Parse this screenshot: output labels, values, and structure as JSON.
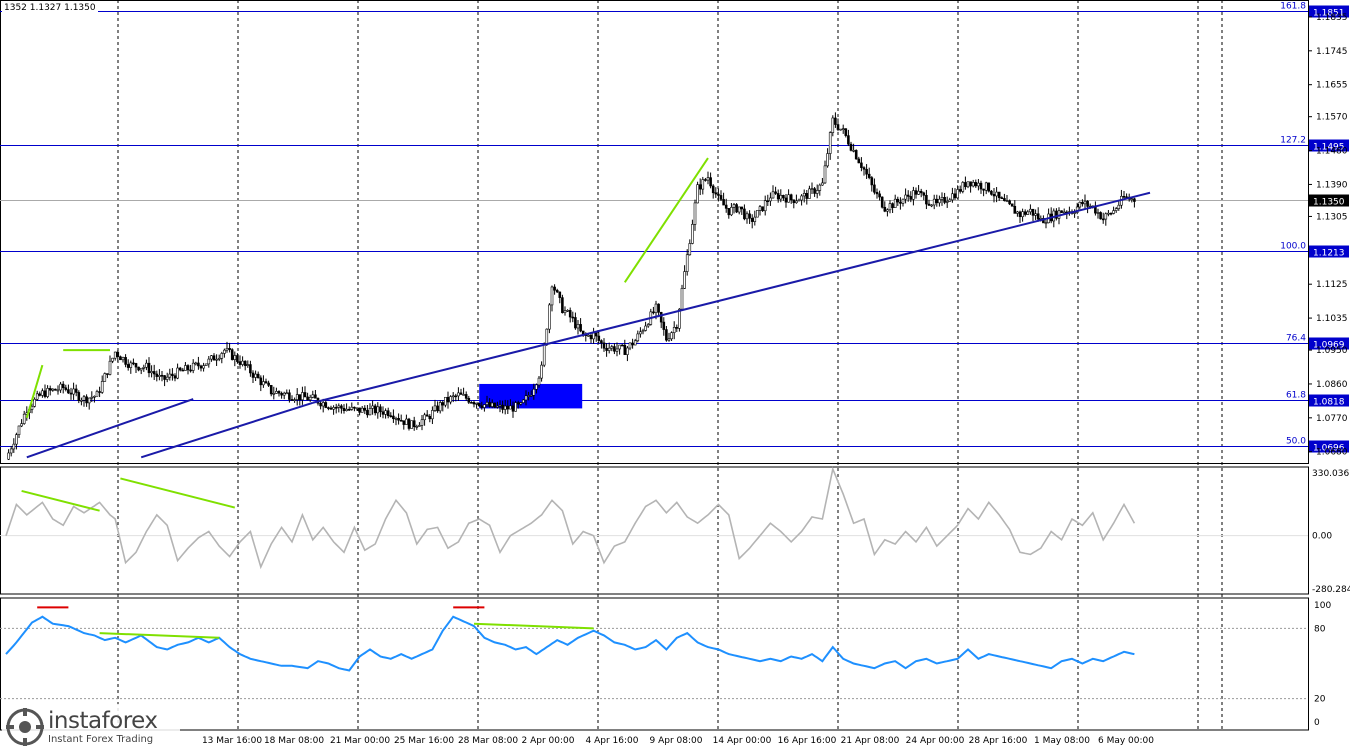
{
  "header": {
    "ohlc_text": "1352 1.1327 1.1350"
  },
  "watermark": {
    "brand": "instaforex",
    "tagline": "Instant Forex Trading"
  },
  "colors": {
    "fib_line": "#0000cc",
    "trend_line": "#1a1aa8",
    "divergence_green": "#7fe000",
    "divergence_red": "#dd0000",
    "price_candle": "#000000",
    "cci_line": "#b4b4b4",
    "rsi_line": "#1e90ff",
    "grid": "#000000",
    "label_box": "#0000cc",
    "rectangle": "#0000ff"
  },
  "chart_data": [
    {
      "type": "candlestick",
      "pane": "price",
      "ylim": [
        1.065,
        1.188
      ],
      "axis_ticks": [
        "1.1835",
        "1.1745",
        "1.1655",
        "1.1570",
        "1.1480",
        "1.1390",
        "1.1305",
        "1.1125",
        "1.1035",
        "1.0950",
        "1.0860",
        "1.0770",
        "1.0680"
      ],
      "fib_levels": [
        {
          "ratio": "161.8",
          "price": 1.1851,
          "price_label": "1.1851"
        },
        {
          "ratio": "127.2",
          "price": 1.1495,
          "price_label": "1.1495"
        },
        {
          "ratio": "100.0",
          "price": 1.1213,
          "price_label": "1.1213"
        },
        {
          "ratio": "76.4",
          "price": 1.0969,
          "price_label": "1.0969"
        },
        {
          "ratio": "61.8",
          "price": 1.0818,
          "price_label": "1.0818"
        },
        {
          "ratio": "50.0",
          "price": 1.0696,
          "price_label": "1.0696"
        }
      ],
      "current_price": {
        "price": 1.135,
        "label": "1.1350"
      },
      "x_labels": [
        "13 Mar 16:00",
        "18 Mar 08:00",
        "21 Mar 00:00",
        "25 Mar 16:00",
        "28 Mar 08:00",
        "2 Apr 00:00",
        "4 Apr 16:00",
        "9 Apr 08:00",
        "14 Apr 00:00",
        "16 Apr 16:00",
        "21 Apr 08:00",
        "24 Apr 00:00",
        "28 Apr 16:00",
        "1 May 08:00",
        "6 May 00:00"
      ],
      "close_path": [
        [
          0,
          1.066
        ],
        [
          8,
          1.0795
        ],
        [
          14,
          1.0835
        ],
        [
          22,
          1.085
        ],
        [
          30,
          1.082
        ],
        [
          35,
          1.083
        ],
        [
          42,
          1.0945
        ],
        [
          48,
          1.091
        ],
        [
          54,
          1.0905
        ],
        [
          60,
          1.087
        ],
        [
          66,
          1.089
        ],
        [
          72,
          1.0905
        ],
        [
          78,
          1.092
        ],
        [
          84,
          1.095
        ],
        [
          90,
          1.092
        ],
        [
          96,
          1.088
        ],
        [
          102,
          1.084
        ],
        [
          110,
          1.083
        ],
        [
          118,
          1.082
        ],
        [
          126,
          1.08
        ],
        [
          134,
          1.079
        ],
        [
          142,
          1.079
        ],
        [
          148,
          1.0785
        ],
        [
          152,
          1.0765
        ],
        [
          156,
          1.075
        ],
        [
          162,
          1.077
        ],
        [
          168,
          1.081
        ],
        [
          174,
          1.083
        ],
        [
          180,
          1.0815
        ],
        [
          186,
          1.08
        ],
        [
          192,
          1.0795
        ],
        [
          198,
          1.08
        ],
        [
          202,
          1.084
        ],
        [
          206,
          1.09
        ],
        [
          210,
          1.113
        ],
        [
          214,
          1.106
        ],
        [
          218,
          1.103
        ],
        [
          222,
          1.0985
        ],
        [
          226,
          1.099
        ],
        [
          230,
          1.096
        ],
        [
          234,
          1.0955
        ],
        [
          238,
          1.095
        ],
        [
          242,
          1.0975
        ],
        [
          246,
          1.102
        ],
        [
          250,
          1.106
        ],
        [
          254,
          1.098
        ],
        [
          258,
          1.102
        ],
        [
          262,
          1.12
        ],
        [
          266,
          1.138
        ],
        [
          270,
          1.141
        ],
        [
          274,
          1.135
        ],
        [
          278,
          1.132
        ],
        [
          282,
          1.133
        ],
        [
          286,
          1.129
        ],
        [
          290,
          1.132
        ],
        [
          294,
          1.136
        ],
        [
          298,
          1.136
        ],
        [
          302,
          1.135
        ],
        [
          306,
          1.1355
        ],
        [
          310,
          1.137
        ],
        [
          314,
          1.139
        ],
        [
          318,
          1.156
        ],
        [
          322,
          1.153
        ],
        [
          326,
          1.148
        ],
        [
          330,
          1.143
        ],
        [
          334,
          1.137
        ],
        [
          338,
          1.133
        ],
        [
          342,
          1.134
        ],
        [
          346,
          1.1355
        ],
        [
          350,
          1.137
        ],
        [
          354,
          1.135
        ],
        [
          358,
          1.1335
        ],
        [
          362,
          1.1355
        ],
        [
          366,
          1.137
        ],
        [
          370,
          1.14
        ],
        [
          374,
          1.139
        ],
        [
          378,
          1.138
        ],
        [
          382,
          1.135
        ],
        [
          386,
          1.133
        ],
        [
          390,
          1.131
        ],
        [
          394,
          1.132
        ],
        [
          398,
          1.1295
        ],
        [
          402,
          1.1305
        ],
        [
          406,
          1.132
        ],
        [
          410,
          1.132
        ],
        [
          414,
          1.134
        ],
        [
          418,
          1.133
        ],
        [
          422,
          1.13
        ],
        [
          426,
          1.132
        ],
        [
          430,
          1.1355
        ],
        [
          434,
          1.135
        ]
      ],
      "trend_lines": [
        {
          "from": [
            8,
            1.0665
          ],
          "to": [
            72,
            1.082
          ]
        },
        {
          "from": [
            52,
            1.0665
          ],
          "to": [
            118,
            1.081
          ]
        },
        {
          "from": [
            118,
            1.081
          ],
          "to": [
            440,
            1.1368
          ]
        }
      ],
      "divergence_lines": [
        {
          "from": [
            8,
            1.077
          ],
          "to": [
            14,
            1.091
          ]
        },
        {
          "from": [
            22,
            1.095
          ],
          "to": [
            40,
            1.095
          ]
        },
        {
          "from": [
            238,
            1.113
          ],
          "to": [
            270,
            1.146
          ]
        }
      ],
      "rectangle": {
        "x0": 26,
        "x1": 31,
        "y0": 1.0795,
        "y1": 1.086
      }
    },
    {
      "type": "line",
      "pane": "cci",
      "ylim": [
        -280.284,
        330.0361
      ],
      "axis_ticks": [
        "330.0361",
        "0.00",
        "-280.2840"
      ],
      "values": [
        [
          0,
          0
        ],
        [
          4,
          150
        ],
        [
          8,
          100
        ],
        [
          14,
          160
        ],
        [
          18,
          80
        ],
        [
          22,
          50
        ],
        [
          26,
          140
        ],
        [
          30,
          110
        ],
        [
          36,
          160
        ],
        [
          40,
          100
        ],
        [
          42,
          80
        ],
        [
          46,
          -130
        ],
        [
          50,
          -80
        ],
        [
          54,
          20
        ],
        [
          58,
          100
        ],
        [
          62,
          50
        ],
        [
          66,
          -120
        ],
        [
          70,
          -60
        ],
        [
          74,
          -10
        ],
        [
          78,
          20
        ],
        [
          82,
          -50
        ],
        [
          86,
          -100
        ],
        [
          90,
          -30
        ],
        [
          94,
          20
        ],
        [
          98,
          -150
        ],
        [
          102,
          -40
        ],
        [
          106,
          40
        ],
        [
          110,
          -30
        ],
        [
          114,
          100
        ],
        [
          118,
          -20
        ],
        [
          122,
          40
        ],
        [
          126,
          -30
        ],
        [
          130,
          -80
        ],
        [
          134,
          40
        ],
        [
          138,
          -70
        ],
        [
          142,
          -40
        ],
        [
          146,
          80
        ],
        [
          150,
          170
        ],
        [
          154,
          110
        ],
        [
          158,
          -40
        ],
        [
          162,
          30
        ],
        [
          166,
          40
        ],
        [
          170,
          -60
        ],
        [
          174,
          -30
        ],
        [
          178,
          60
        ],
        [
          182,
          80
        ],
        [
          186,
          50
        ],
        [
          190,
          -80
        ],
        [
          194,
          0
        ],
        [
          198,
          30
        ],
        [
          202,
          60
        ],
        [
          206,
          100
        ],
        [
          210,
          170
        ],
        [
          214,
          120
        ],
        [
          218,
          -40
        ],
        [
          222,
          20
        ],
        [
          226,
          0
        ],
        [
          230,
          -130
        ],
        [
          234,
          -50
        ],
        [
          238,
          -30
        ],
        [
          242,
          60
        ],
        [
          246,
          140
        ],
        [
          250,
          170
        ],
        [
          254,
          110
        ],
        [
          258,
          160
        ],
        [
          262,
          90
        ],
        [
          266,
          60
        ],
        [
          270,
          100
        ],
        [
          274,
          150
        ],
        [
          278,
          100
        ],
        [
          282,
          -110
        ],
        [
          286,
          -60
        ],
        [
          290,
          0
        ],
        [
          294,
          60
        ],
        [
          298,
          20
        ],
        [
          302,
          -30
        ],
        [
          306,
          20
        ],
        [
          310,
          90
        ],
        [
          314,
          80
        ],
        [
          318,
          320
        ],
        [
          322,
          200
        ],
        [
          326,
          60
        ],
        [
          330,
          80
        ],
        [
          334,
          -90
        ],
        [
          338,
          -20
        ],
        [
          342,
          -40
        ],
        [
          346,
          20
        ],
        [
          350,
          -30
        ],
        [
          354,
          40
        ],
        [
          358,
          -50
        ],
        [
          362,
          0
        ],
        [
          366,
          50
        ],
        [
          370,
          130
        ],
        [
          374,
          80
        ],
        [
          378,
          160
        ],
        [
          382,
          100
        ],
        [
          386,
          30
        ],
        [
          390,
          -80
        ],
        [
          394,
          -90
        ],
        [
          398,
          -60
        ],
        [
          402,
          20
        ],
        [
          406,
          -20
        ],
        [
          410,
          80
        ],
        [
          414,
          50
        ],
        [
          418,
          110
        ],
        [
          422,
          -20
        ],
        [
          426,
          60
        ],
        [
          430,
          150
        ],
        [
          434,
          60
        ]
      ],
      "divergence_lines": [
        {
          "from": [
            6,
            215
          ],
          "to": [
            36,
            120
          ]
        },
        {
          "from": [
            44,
            275
          ],
          "to": [
            88,
            135
          ]
        }
      ]
    },
    {
      "type": "line",
      "pane": "rsi",
      "ylim": [
        0,
        100
      ],
      "axis_ticks": [
        "100",
        "80",
        "20",
        "0"
      ],
      "levels": [
        80,
        20
      ],
      "values": [
        [
          0,
          58
        ],
        [
          4,
          68
        ],
        [
          10,
          85
        ],
        [
          14,
          90
        ],
        [
          18,
          84
        ],
        [
          24,
          82
        ],
        [
          30,
          76
        ],
        [
          34,
          74
        ],
        [
          38,
          70
        ],
        [
          42,
          72
        ],
        [
          46,
          68
        ],
        [
          52,
          74
        ],
        [
          58,
          64
        ],
        [
          62,
          62
        ],
        [
          66,
          66
        ],
        [
          70,
          68
        ],
        [
          74,
          72
        ],
        [
          78,
          68
        ],
        [
          82,
          72
        ],
        [
          86,
          64
        ],
        [
          90,
          58
        ],
        [
          94,
          54
        ],
        [
          98,
          52
        ],
        [
          102,
          50
        ],
        [
          106,
          48
        ],
        [
          110,
          48
        ],
        [
          116,
          46
        ],
        [
          120,
          52
        ],
        [
          124,
          50
        ],
        [
          128,
          46
        ],
        [
          132,
          44
        ],
        [
          136,
          56
        ],
        [
          140,
          62
        ],
        [
          144,
          56
        ],
        [
          148,
          54
        ],
        [
          152,
          58
        ],
        [
          156,
          54
        ],
        [
          160,
          58
        ],
        [
          164,
          62
        ],
        [
          168,
          78
        ],
        [
          172,
          90
        ],
        [
          176,
          86
        ],
        [
          180,
          82
        ],
        [
          184,
          72
        ],
        [
          188,
          68
        ],
        [
          192,
          66
        ],
        [
          196,
          62
        ],
        [
          200,
          64
        ],
        [
          204,
          58
        ],
        [
          208,
          64
        ],
        [
          212,
          70
        ],
        [
          216,
          66
        ],
        [
          220,
          72
        ],
        [
          226,
          78
        ],
        [
          230,
          74
        ],
        [
          234,
          68
        ],
        [
          238,
          66
        ],
        [
          242,
          62
        ],
        [
          246,
          64
        ],
        [
          250,
          70
        ],
        [
          254,
          62
        ],
        [
          258,
          72
        ],
        [
          262,
          76
        ],
        [
          266,
          68
        ],
        [
          270,
          64
        ],
        [
          274,
          62
        ],
        [
          278,
          58
        ],
        [
          282,
          56
        ],
        [
          286,
          54
        ],
        [
          290,
          52
        ],
        [
          294,
          54
        ],
        [
          298,
          52
        ],
        [
          302,
          56
        ],
        [
          306,
          54
        ],
        [
          310,
          58
        ],
        [
          314,
          52
        ],
        [
          318,
          64
        ],
        [
          322,
          54
        ],
        [
          326,
          50
        ],
        [
          330,
          48
        ],
        [
          334,
          46
        ],
        [
          338,
          50
        ],
        [
          342,
          52
        ],
        [
          346,
          46
        ],
        [
          350,
          52
        ],
        [
          354,
          54
        ],
        [
          358,
          50
        ],
        [
          362,
          52
        ],
        [
          366,
          54
        ],
        [
          370,
          62
        ],
        [
          374,
          54
        ],
        [
          378,
          58
        ],
        [
          382,
          56
        ],
        [
          386,
          54
        ],
        [
          390,
          52
        ],
        [
          394,
          50
        ],
        [
          398,
          48
        ],
        [
          402,
          46
        ],
        [
          406,
          52
        ],
        [
          410,
          54
        ],
        [
          414,
          50
        ],
        [
          418,
          54
        ],
        [
          422,
          52
        ],
        [
          426,
          56
        ],
        [
          430,
          60
        ],
        [
          434,
          58
        ]
      ],
      "divergence_lines": [
        {
          "from": [
            36,
            76
          ],
          "to": [
            82,
            72
          ]
        },
        {
          "from": [
            180,
            84
          ],
          "to": [
            226,
            80
          ]
        }
      ],
      "peak_markers": [
        {
          "from": [
            12,
            98
          ],
          "to": [
            24,
            98
          ]
        },
        {
          "from": [
            172,
            98
          ],
          "to": [
            184,
            98
          ]
        }
      ]
    }
  ]
}
